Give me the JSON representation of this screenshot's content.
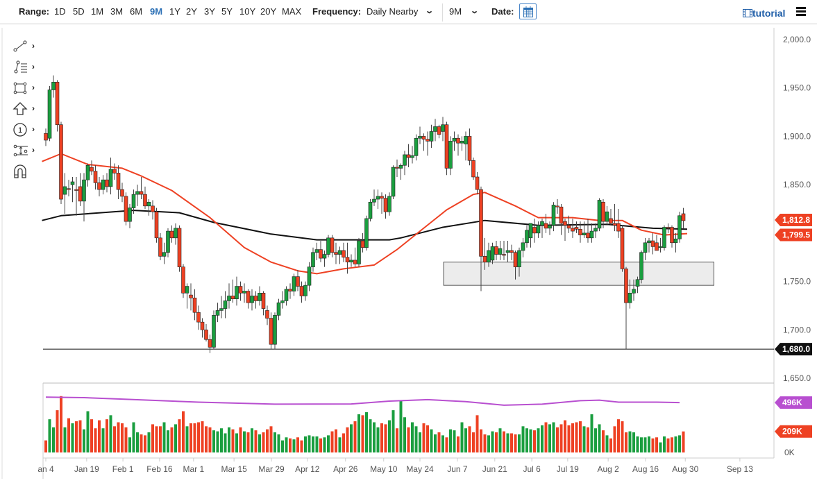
{
  "toolbar": {
    "range_label": "Range:",
    "ranges": [
      "1D",
      "5D",
      "1M",
      "3M",
      "6M",
      "9M",
      "1Y",
      "2Y",
      "3Y",
      "5Y",
      "10Y",
      "20Y",
      "MAX"
    ],
    "active_range": "9M",
    "frequency_label": "Frequency:",
    "frequency_value": "Daily Nearby",
    "period_value": "9M",
    "date_label": "Date:",
    "tutorial_label": "tutorial",
    "accent_color": "#2a6fb5"
  },
  "tools": [
    "line-tool",
    "fibonacci-tool",
    "rectangle-tool",
    "arrow-tool",
    "numbered-marker-tool",
    "measure-tool",
    "magnet-tool"
  ],
  "chart_data": {
    "type": "candlestick",
    "price_axis": {
      "ylim": [
        1650,
        2000
      ],
      "ticks": [
        "2,000.0",
        "1,950.0",
        "1,900.0",
        "1,850.0",
        "1,750.0",
        "1,700.0",
        "1,650.0"
      ],
      "tick_values": [
        2000,
        1950,
        1900,
        1850,
        1750,
        1700,
        1650
      ]
    },
    "x_labels": [
      {
        "label": "an 4",
        "index": 0
      },
      {
        "label": "Jan 19",
        "index": 10.7
      },
      {
        "label": "Feb 1",
        "index": 20.2
      },
      {
        "label": "Feb 16",
        "index": 29.8
      },
      {
        "label": "Mar 1",
        "index": 38.7
      },
      {
        "label": "Mar 15",
        "index": 49.3
      },
      {
        "label": "Mar 29",
        "index": 59.1
      },
      {
        "label": "Apr 12",
        "index": 68.5
      },
      {
        "label": "Apr 26",
        "index": 78.5
      },
      {
        "label": "May 10",
        "index": 88.5
      },
      {
        "label": "May 24",
        "index": 98
      },
      {
        "label": "Jun 7",
        "index": 107.8
      },
      {
        "label": "Jun 21",
        "index": 117.6
      },
      {
        "label": "Jul 6",
        "index": 127.3
      },
      {
        "label": "Jul 19",
        "index": 136.7
      },
      {
        "label": "Aug 2",
        "index": 147.3
      },
      {
        "label": "Aug 16",
        "index": 157.1
      },
      {
        "label": "Aug 30",
        "index": 167.5
      },
      {
        "label": "Sep 13",
        "index": 181.8
      }
    ],
    "candles_ohlc": [
      [
        1903,
        1908,
        1890,
        1896
      ],
      [
        1898,
        1952,
        1895,
        1948
      ],
      [
        1948,
        1963,
        1940,
        1956
      ],
      [
        1956,
        1958,
        1905,
        1912
      ],
      [
        1912,
        1915,
        1830,
        1835
      ],
      [
        1840,
        1862,
        1820,
        1848
      ],
      [
        1846,
        1855,
        1838,
        1845
      ],
      [
        1850,
        1858,
        1832,
        1853
      ],
      [
        1845,
        1858,
        1818,
        1844
      ],
      [
        1848,
        1862,
        1828,
        1833
      ],
      [
        1833,
        1862,
        1812,
        1855
      ],
      [
        1855,
        1872,
        1848,
        1870
      ],
      [
        1868,
        1875,
        1860,
        1864
      ],
      [
        1864,
        1870,
        1845,
        1852
      ],
      [
        1852,
        1858,
        1838,
        1845
      ],
      [
        1845,
        1860,
        1840,
        1855
      ],
      [
        1855,
        1862,
        1842,
        1848
      ],
      [
        1848,
        1878,
        1840,
        1866
      ],
      [
        1866,
        1872,
        1855,
        1862
      ],
      [
        1862,
        1870,
        1835,
        1845
      ],
      [
        1845,
        1852,
        1832,
        1838
      ],
      [
        1838,
        1842,
        1808,
        1812
      ],
      [
        1812,
        1830,
        1805,
        1826
      ],
      [
        1826,
        1845,
        1820,
        1840
      ],
      [
        1840,
        1850,
        1828,
        1843
      ],
      [
        1843,
        1858,
        1835,
        1840
      ],
      [
        1840,
        1848,
        1825,
        1828
      ],
      [
        1828,
        1835,
        1818,
        1832
      ],
      [
        1828,
        1834,
        1814,
        1822
      ],
      [
        1822,
        1826,
        1790,
        1795
      ],
      [
        1795,
        1800,
        1772,
        1776
      ],
      [
        1776,
        1790,
        1768,
        1780
      ],
      [
        1780,
        1805,
        1775,
        1802
      ],
      [
        1802,
        1808,
        1790,
        1795
      ],
      [
        1795,
        1810,
        1788,
        1805
      ],
      [
        1805,
        1808,
        1760,
        1765
      ],
      [
        1765,
        1768,
        1733,
        1738
      ],
      [
        1738,
        1748,
        1722,
        1745
      ],
      [
        1736,
        1748,
        1720,
        1733
      ],
      [
        1733,
        1742,
        1710,
        1718
      ],
      [
        1718,
        1725,
        1700,
        1708
      ],
      [
        1708,
        1712,
        1692,
        1700
      ],
      [
        1700,
        1706,
        1688,
        1690
      ],
      [
        1690,
        1695,
        1676,
        1682
      ],
      [
        1682,
        1720,
        1680,
        1715
      ],
      [
        1715,
        1728,
        1708,
        1720
      ],
      [
        1720,
        1735,
        1712,
        1722
      ],
      [
        1722,
        1740,
        1712,
        1730
      ],
      [
        1730,
        1748,
        1722,
        1735
      ],
      [
        1735,
        1752,
        1728,
        1732
      ],
      [
        1732,
        1755,
        1725,
        1745
      ],
      [
        1745,
        1750,
        1730,
        1738
      ],
      [
        1738,
        1748,
        1728,
        1740
      ],
      [
        1740,
        1742,
        1722,
        1728
      ],
      [
        1728,
        1742,
        1720,
        1735
      ],
      [
        1735,
        1740,
        1722,
        1730
      ],
      [
        1730,
        1745,
        1725,
        1738
      ],
      [
        1738,
        1740,
        1715,
        1722
      ],
      [
        1720,
        1725,
        1705,
        1712
      ],
      [
        1712,
        1718,
        1680,
        1685
      ],
      [
        1685,
        1718,
        1680,
        1715
      ],
      [
        1715,
        1732,
        1710,
        1728
      ],
      [
        1728,
        1740,
        1722,
        1730
      ],
      [
        1730,
        1745,
        1725,
        1742
      ],
      [
        1742,
        1748,
        1732,
        1740
      ],
      [
        1740,
        1758,
        1735,
        1755
      ],
      [
        1755,
        1762,
        1740,
        1745
      ],
      [
        1745,
        1750,
        1728,
        1735
      ],
      [
        1735,
        1750,
        1730,
        1746
      ],
      [
        1746,
        1770,
        1740,
        1765
      ],
      [
        1765,
        1785,
        1760,
        1780
      ],
      [
        1780,
        1790,
        1772,
        1783
      ],
      [
        1783,
        1792,
        1770,
        1774
      ],
      [
        1774,
        1782,
        1765,
        1778
      ],
      [
        1778,
        1798,
        1775,
        1795
      ],
      [
        1795,
        1798,
        1775,
        1780
      ],
      [
        1780,
        1790,
        1768,
        1778
      ],
      [
        1778,
        1786,
        1768,
        1782
      ],
      [
        1782,
        1790,
        1770,
        1775
      ],
      [
        1775,
        1790,
        1758,
        1770
      ],
      [
        1770,
        1778,
        1765,
        1772
      ],
      [
        1772,
        1785,
        1765,
        1768
      ],
      [
        1768,
        1795,
        1765,
        1792
      ],
      [
        1792,
        1800,
        1780,
        1785
      ],
      [
        1785,
        1818,
        1782,
        1815
      ],
      [
        1815,
        1835,
        1812,
        1832
      ],
      [
        1832,
        1845,
        1828,
        1835
      ],
      [
        1835,
        1845,
        1825,
        1838
      ],
      [
        1838,
        1842,
        1820,
        1836
      ],
      [
        1836,
        1840,
        1815,
        1822
      ],
      [
        1822,
        1842,
        1818,
        1838
      ],
      [
        1838,
        1870,
        1835,
        1868
      ],
      [
        1868,
        1876,
        1858,
        1867
      ],
      [
        1867,
        1872,
        1855,
        1870
      ],
      [
        1870,
        1885,
        1860,
        1881
      ],
      [
        1881,
        1892,
        1868,
        1878
      ],
      [
        1878,
        1890,
        1872,
        1880
      ],
      [
        1880,
        1902,
        1875,
        1898
      ],
      [
        1898,
        1910,
        1892,
        1900
      ],
      [
        1900,
        1903,
        1885,
        1897
      ],
      [
        1897,
        1905,
        1880,
        1895
      ],
      [
        1895,
        1912,
        1888,
        1905
      ],
      [
        1905,
        1918,
        1895,
        1910
      ],
      [
        1910,
        1912,
        1898,
        1902
      ],
      [
        1905,
        1920,
        1895,
        1912
      ],
      [
        1912,
        1915,
        1860,
        1867
      ],
      [
        1867,
        1900,
        1860,
        1895
      ],
      [
        1895,
        1905,
        1885,
        1898
      ],
      [
        1898,
        1902,
        1880,
        1893
      ],
      [
        1893,
        1900,
        1885,
        1895
      ],
      [
        1892,
        1905,
        1875,
        1900
      ],
      [
        1900,
        1908,
        1870,
        1875
      ],
      [
        1875,
        1878,
        1855,
        1858
      ],
      [
        1858,
        1863,
        1840,
        1845
      ],
      [
        1845,
        1848,
        1740,
        1776
      ],
      [
        1776,
        1795,
        1762,
        1770
      ],
      [
        1770,
        1790,
        1765,
        1782
      ],
      [
        1772,
        1790,
        1768,
        1786
      ],
      [
        1786,
        1792,
        1772,
        1778
      ],
      [
        1778,
        1792,
        1772,
        1784
      ],
      [
        1778,
        1792,
        1772,
        1777
      ],
      [
        1780,
        1792,
        1770,
        1782
      ],
      [
        1782,
        1788,
        1772,
        1780
      ],
      [
        1780,
        1782,
        1752,
        1765
      ],
      [
        1765,
        1785,
        1755,
        1782
      ],
      [
        1782,
        1795,
        1775,
        1790
      ],
      [
        1790,
        1808,
        1785,
        1803
      ],
      [
        1795,
        1810,
        1785,
        1810
      ],
      [
        1806,
        1815,
        1790,
        1800
      ],
      [
        1800,
        1812,
        1795,
        1808
      ],
      [
        1808,
        1815,
        1795,
        1812
      ],
      [
        1810,
        1820,
        1800,
        1805
      ],
      [
        1805,
        1812,
        1798,
        1808
      ],
      [
        1808,
        1832,
        1802,
        1829
      ],
      [
        1828,
        1835,
        1820,
        1827
      ],
      [
        1827,
        1830,
        1798,
        1810
      ],
      [
        1812,
        1815,
        1792,
        1808
      ],
      [
        1808,
        1818,
        1800,
        1805
      ],
      [
        1805,
        1815,
        1795,
        1802
      ],
      [
        1806,
        1812,
        1800,
        1804
      ],
      [
        1804,
        1812,
        1790,
        1798
      ],
      [
        1798,
        1812,
        1795,
        1800
      ],
      [
        1800,
        1815,
        1790,
        1795
      ],
      [
        1795,
        1810,
        1790,
        1802
      ],
      [
        1802,
        1810,
        1795,
        1805
      ],
      [
        1805,
        1836,
        1802,
        1834
      ],
      [
        1832,
        1835,
        1805,
        1812
      ],
      [
        1812,
        1828,
        1808,
        1822
      ],
      [
        1815,
        1825,
        1808,
        1810
      ],
      [
        1810,
        1830,
        1802,
        1808
      ],
      [
        1810,
        1825,
        1795,
        1802
      ],
      [
        1805,
        1808,
        1760,
        1763
      ],
      [
        1763,
        1765,
        1680,
        1728
      ],
      [
        1728,
        1752,
        1722,
        1738
      ],
      [
        1738,
        1752,
        1730,
        1742
      ],
      [
        1745,
        1755,
        1738,
        1752
      ],
      [
        1752,
        1782,
        1748,
        1780
      ],
      [
        1780,
        1795,
        1772,
        1790
      ],
      [
        1790,
        1795,
        1780,
        1792
      ],
      [
        1792,
        1800,
        1778,
        1786
      ],
      [
        1790,
        1798,
        1782,
        1782
      ],
      [
        1785,
        1795,
        1780,
        1786
      ],
      [
        1785,
        1808,
        1782,
        1806
      ],
      [
        1806,
        1810,
        1800,
        1805
      ],
      [
        1806,
        1808,
        1785,
        1790
      ],
      [
        1790,
        1800,
        1780,
        1794
      ],
      [
        1794,
        1822,
        1790,
        1818
      ],
      [
        1820,
        1826,
        1805,
        1812.8
      ]
    ],
    "ma_red": [
      [
        -1,
        1874
      ],
      [
        4,
        1882
      ],
      [
        11,
        1871
      ],
      [
        20,
        1867
      ],
      [
        25,
        1859
      ],
      [
        33,
        1844
      ],
      [
        43,
        1816
      ],
      [
        52,
        1785
      ],
      [
        59,
        1770
      ],
      [
        66,
        1761
      ],
      [
        71,
        1758
      ],
      [
        78,
        1763
      ],
      [
        86,
        1767
      ],
      [
        92,
        1783
      ],
      [
        98,
        1802
      ],
      [
        105,
        1824
      ],
      [
        112,
        1840
      ],
      [
        115,
        1842
      ],
      [
        123,
        1828
      ],
      [
        129,
        1816
      ],
      [
        138,
        1816
      ],
      [
        145,
        1813
      ],
      [
        151,
        1813
      ],
      [
        156,
        1803
      ],
      [
        162,
        1798
      ],
      [
        168,
        1799.5
      ]
    ],
    "ma_black": [
      [
        -1,
        1813
      ],
      [
        4,
        1818
      ],
      [
        23,
        1823.5
      ],
      [
        35,
        1821
      ],
      [
        44,
        1811
      ],
      [
        59,
        1799
      ],
      [
        71,
        1793
      ],
      [
        90,
        1793
      ],
      [
        93,
        1795
      ],
      [
        104,
        1806
      ],
      [
        115,
        1813
      ],
      [
        129,
        1808
      ],
      [
        147,
        1809
      ],
      [
        153,
        1807
      ],
      [
        159,
        1805
      ],
      [
        168,
        1804
      ]
    ],
    "support_line": 1680,
    "zone": {
      "price_range": [
        1746,
        1770
      ],
      "index_range": [
        104.2,
        175
      ]
    },
    "badges": {
      "last_price": "1,812.8",
      "ma_value": "1,799.5",
      "support": "1,680.0"
    },
    "volume": {
      "values_k": [
        120,
        330,
        250,
        420,
        560,
        250,
        340,
        290,
        310,
        320,
        230,
        410,
        330,
        240,
        320,
        240,
        330,
        370,
        260,
        300,
        290,
        250,
        150,
        300,
        200,
        180,
        170,
        200,
        280,
        260,
        260,
        300,
        220,
        250,
        280,
        330,
        410,
        260,
        290,
        290,
        300,
        310,
        260,
        250,
        220,
        210,
        240,
        190,
        250,
        230,
        190,
        250,
        210,
        200,
        240,
        220,
        180,
        200,
        230,
        260,
        200,
        180,
        120,
        150,
        140,
        130,
        150,
        120,
        160,
        170,
        160,
        160,
        140,
        150,
        170,
        210,
        230,
        150,
        190,
        250,
        280,
        310,
        380,
        370,
        400,
        330,
        300,
        250,
        290,
        280,
        320,
        420,
        240,
        520,
        350,
        250,
        300,
        260,
        200,
        290,
        270,
        230,
        180,
        200,
        170,
        150,
        230,
        220,
        160,
        300,
        240,
        260,
        200,
        370,
        230,
        180,
        170,
        210,
        200,
        240,
        210,
        190,
        190,
        180,
        180,
        260,
        240,
        230,
        220,
        240,
        270,
        300,
        280,
        300,
        250,
        280,
        320,
        270,
        290,
        300,
        310,
        260,
        250,
        380,
        240,
        280,
        220,
        170,
        140,
        260,
        330,
        310,
        200,
        210,
        200,
        160,
        150,
        150,
        160,
        140,
        150,
        100,
        160,
        140,
        150,
        160,
        170,
        209
      ],
      "avg_k": [
        [
          0,
          550
        ],
        [
          10,
          545
        ],
        [
          20,
          530
        ],
        [
          40,
          500
        ],
        [
          60,
          480
        ],
        [
          80,
          482
        ],
        [
          90,
          510
        ],
        [
          100,
          525
        ],
        [
          110,
          505
        ],
        [
          120,
          470
        ],
        [
          130,
          480
        ],
        [
          140,
          515
        ],
        [
          145,
          520
        ],
        [
          150,
          500
        ],
        [
          160,
          500
        ],
        [
          166,
          496
        ]
      ],
      "axis_labels": {
        "avg": "496K",
        "last": "209K",
        "zero": "0K"
      }
    },
    "colors": {
      "up": "#1a9e3f",
      "down": "#ee4123",
      "ma_red": "#ee4123",
      "ma_black": "#111111",
      "volume_avg": "#b84fd0"
    }
  }
}
